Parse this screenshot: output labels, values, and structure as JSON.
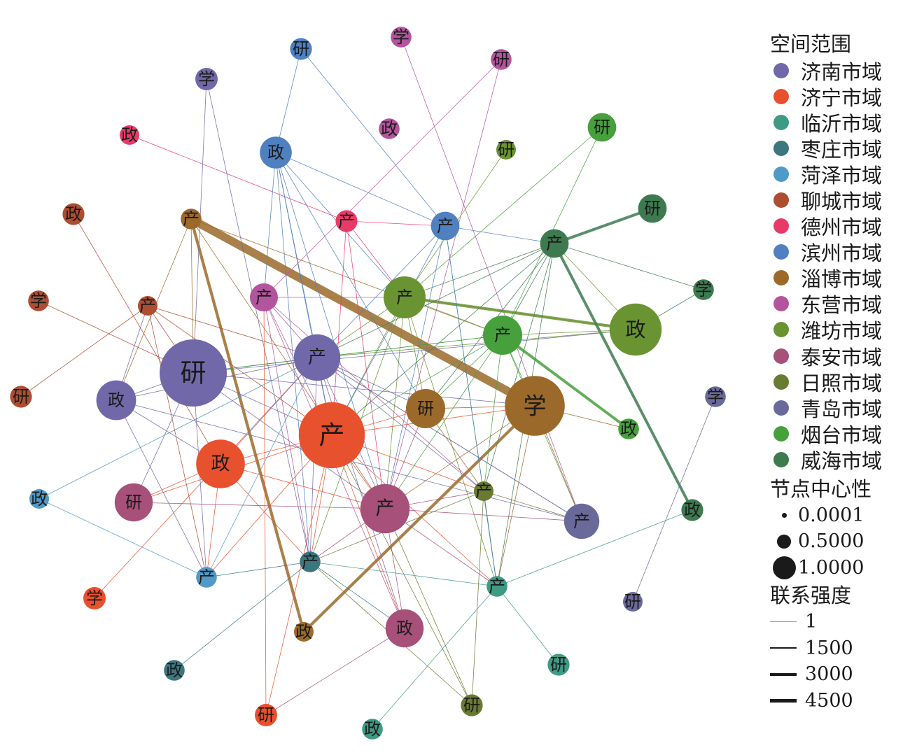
{
  "legend": {
    "region_title": "空间范围",
    "centrality_title": "节点中心性",
    "strength_title": "联系强度",
    "regions": [
      {
        "name": "济南市域",
        "color": "#7068a8"
      },
      {
        "name": "济宁市域",
        "color": "#e8512d"
      },
      {
        "name": "临沂市域",
        "color": "#3f9a84"
      },
      {
        "name": "枣庄市域",
        "color": "#3c7780"
      },
      {
        "name": "菏泽市域",
        "color": "#4f9ac8"
      },
      {
        "name": "聊城市域",
        "color": "#ad4e33"
      },
      {
        "name": "德州市域",
        "color": "#e83a68"
      },
      {
        "name": "滨州市域",
        "color": "#4f80c0"
      },
      {
        "name": "淄博市域",
        "color": "#9b6a2a"
      },
      {
        "name": "东营市域",
        "color": "#b2559d"
      },
      {
        "name": "潍坊市域",
        "color": "#6a9332"
      },
      {
        "name": "泰安市域",
        "color": "#a6507a"
      },
      {
        "name": "日照市域",
        "color": "#697a32"
      },
      {
        "name": "青岛市域",
        "color": "#6a6a9a"
      },
      {
        "name": "烟台市域",
        "color": "#46a03c"
      },
      {
        "name": "威海市域",
        "color": "#3d7a50"
      }
    ],
    "centrality": [
      {
        "label": "0.0001",
        "value": 0.0001
      },
      {
        "label": "0.5000",
        "value": 0.5
      },
      {
        "label": "1.0000",
        "value": 1.0
      }
    ],
    "strength": [
      {
        "label": "1",
        "value": 1
      },
      {
        "label": "1500",
        "value": 1500
      },
      {
        "label": "3000",
        "value": 3000
      },
      {
        "label": "4500",
        "value": 4500
      }
    ]
  },
  "nodes": [
    {
      "id": "jn-yan",
      "label": "研",
      "region": "济南市域",
      "centrality": 0.95
    },
    {
      "id": "jn-chan",
      "label": "产",
      "region": "济南市域",
      "centrality": 0.58
    },
    {
      "id": "jn-zheng",
      "label": "政",
      "region": "济南市域",
      "centrality": 0.46
    },
    {
      "id": "jn-xue",
      "label": "学",
      "region": "济南市域",
      "centrality": 0.15
    },
    {
      "id": "jin-chan",
      "label": "产",
      "region": "济宁市域",
      "centrality": 0.93
    },
    {
      "id": "jin-zheng",
      "label": "政",
      "region": "济宁市域",
      "centrality": 0.62
    },
    {
      "id": "jin-xue",
      "label": "学",
      "region": "济宁市域",
      "centrality": 0.15
    },
    {
      "id": "jin-yan",
      "label": "研",
      "region": "济宁市域",
      "centrality": 0.15
    },
    {
      "id": "ly-chan",
      "label": "产",
      "region": "临沂市域",
      "centrality": 0.12
    },
    {
      "id": "ly-yan",
      "label": "研",
      "region": "临沂市域",
      "centrality": 0.14
    },
    {
      "id": "ly-zheng",
      "label": "政",
      "region": "临沂市域",
      "centrality": 0.12
    },
    {
      "id": "zz-chan",
      "label": "产",
      "region": "枣庄市域",
      "centrality": 0.12
    },
    {
      "id": "zz-zheng",
      "label": "政",
      "region": "枣庄市域",
      "centrality": 0.12
    },
    {
      "id": "hz-zheng",
      "label": "政",
      "region": "菏泽市域",
      "centrality": 0.1
    },
    {
      "id": "hz-chan",
      "label": "产",
      "region": "菏泽市域",
      "centrality": 0.12
    },
    {
      "id": "lc-zheng",
      "label": "政",
      "region": "聊城市域",
      "centrality": 0.14
    },
    {
      "id": "lc-xue",
      "label": "学",
      "region": "聊城市域",
      "centrality": 0.12
    },
    {
      "id": "lc-chan",
      "label": "产",
      "region": "聊城市域",
      "centrality": 0.1
    },
    {
      "id": "lc-yan",
      "label": "研",
      "region": "聊城市域",
      "centrality": 0.14
    },
    {
      "id": "dz-zheng",
      "label": "政",
      "region": "德州市域",
      "centrality": 0.1
    },
    {
      "id": "dz-chan",
      "label": "产",
      "region": "德州市域",
      "centrality": 0.14
    },
    {
      "id": "bz-yan",
      "label": "研",
      "region": "滨州市域",
      "centrality": 0.14
    },
    {
      "id": "bz-zheng",
      "label": "政",
      "region": "滨州市域",
      "centrality": 0.32
    },
    {
      "id": "bz-chan",
      "label": "产",
      "region": "滨州市域",
      "centrality": 0.26
    },
    {
      "id": "zb-chan",
      "label": "产",
      "region": "淄博市域",
      "centrality": 0.12
    },
    {
      "id": "zb-yan",
      "label": "研",
      "region": "淄博市域",
      "centrality": 0.45
    },
    {
      "id": "zb-xue",
      "label": "学",
      "region": "淄博市域",
      "centrality": 0.82
    },
    {
      "id": "zb-zheng",
      "label": "政",
      "region": "淄博市域",
      "centrality": 0.1
    },
    {
      "id": "dy-xue",
      "label": "学",
      "region": "东营市域",
      "centrality": 0.12
    },
    {
      "id": "dy-yan",
      "label": "研",
      "region": "东营市域",
      "centrality": 0.12
    },
    {
      "id": "dy-zheng",
      "label": "政",
      "region": "东营市域",
      "centrality": 0.12
    },
    {
      "id": "dy-chan",
      "label": "产",
      "region": "东营市域",
      "centrality": 0.25
    },
    {
      "id": "wf-yan",
      "label": "研",
      "region": "潍坊市域",
      "centrality": 0.1
    },
    {
      "id": "wf-chan",
      "label": "产",
      "region": "潍坊市域",
      "centrality": 0.5
    },
    {
      "id": "wf-zheng",
      "label": "政",
      "region": "潍坊市域",
      "centrality": 0.68
    },
    {
      "id": "ta-yan",
      "label": "研",
      "region": "泰安市域",
      "centrality": 0.43
    },
    {
      "id": "ta-chan",
      "label": "产",
      "region": "泰安市域",
      "centrality": 0.63
    },
    {
      "id": "ta-zheng",
      "label": "政",
      "region": "泰安市域",
      "centrality": 0.43
    },
    {
      "id": "rz-chan",
      "label": "产",
      "region": "日照市域",
      "centrality": 0.1
    },
    {
      "id": "rz-yan",
      "label": "研",
      "region": "日照市域",
      "centrality": 0.14
    },
    {
      "id": "qd-xue",
      "label": "学",
      "region": "青岛市域",
      "centrality": 0.12
    },
    {
      "id": "qd-chan",
      "label": "产",
      "region": "青岛市域",
      "centrality": 0.38
    },
    {
      "id": "qd-yan",
      "label": "研",
      "region": "青岛市域",
      "centrality": 0.1
    },
    {
      "id": "yt-yan",
      "label": "研",
      "region": "烟台市域",
      "centrality": 0.26
    },
    {
      "id": "yt-chan",
      "label": "产",
      "region": "烟台市域",
      "centrality": 0.45
    },
    {
      "id": "yt-zheng",
      "label": "政",
      "region": "烟台市域",
      "centrality": 0.12
    },
    {
      "id": "wh-yan",
      "label": "研",
      "region": "威海市域",
      "centrality": 0.26
    },
    {
      "id": "wh-chan",
      "label": "产",
      "region": "威海市域",
      "centrality": 0.26
    },
    {
      "id": "wh-xue",
      "label": "学",
      "region": "威海市域",
      "centrality": 0.12
    },
    {
      "id": "wh-zheng",
      "label": "政",
      "region": "威海市域",
      "centrality": 0.14
    }
  ],
  "edges": [
    {
      "from": "zb-chan",
      "to": "zb-xue",
      "strength": 4500
    },
    {
      "from": "zb-chan",
      "to": "zb-zheng",
      "strength": 1400
    },
    {
      "from": "zb-xue",
      "to": "zb-zheng",
      "strength": 1400
    },
    {
      "from": "wf-chan",
      "to": "wf-zheng",
      "strength": 1400
    },
    {
      "from": "wh-chan",
      "to": "wh-yan",
      "strength": 1300
    },
    {
      "from": "wh-chan",
      "to": "wh-zheng",
      "strength": 1300
    },
    {
      "from": "yt-chan",
      "to": "yt-zheng",
      "strength": 1300
    },
    {
      "from": "dz-zheng",
      "to": "dz-chan",
      "strength": 1
    },
    {
      "from": "dy-xue",
      "to": "qd-chan",
      "strength": 1
    },
    {
      "from": "dy-yan",
      "to": "dy-chan",
      "strength": 1
    },
    {
      "from": "dy-yan",
      "to": "ta-chan",
      "strength": 1
    },
    {
      "from": "bz-yan",
      "to": "bz-zheng",
      "strength": 1
    },
    {
      "from": "bz-yan",
      "to": "bz-chan",
      "strength": 1
    },
    {
      "from": "jn-xue",
      "to": "zz-chan",
      "strength": 1
    },
    {
      "from": "lc-zheng",
      "to": "jin-zheng",
      "strength": 1
    },
    {
      "from": "lc-xue",
      "to": "jn-yan",
      "strength": 1
    },
    {
      "from": "lc-yan",
      "to": "lc-chan",
      "strength": 1
    },
    {
      "from": "jin-xue",
      "to": "jn-chan",
      "strength": 1
    },
    {
      "from": "jin-yan",
      "to": "dy-chan",
      "strength": 1
    },
    {
      "from": "hz-zheng",
      "to": "hz-chan",
      "strength": 1
    },
    {
      "from": "hz-zheng",
      "to": "jn-chan",
      "strength": 1
    },
    {
      "from": "zz-zheng",
      "to": "zz-chan",
      "strength": 1
    },
    {
      "from": "ly-zheng",
      "to": "ly-chan",
      "strength": 1
    },
    {
      "from": "ly-yan",
      "to": "ly-chan",
      "strength": 1
    },
    {
      "from": "qd-yan",
      "to": "qd-xue",
      "strength": 1
    },
    {
      "from": "wh-xue",
      "to": "wh-chan",
      "strength": 1
    },
    {
      "from": "wh-xue",
      "to": "wf-zheng",
      "strength": 1
    },
    {
      "from": "wf-yan",
      "to": "wf-chan",
      "strength": 1
    },
    {
      "from": "yt-yan",
      "to": "wf-chan",
      "strength": 1
    },
    {
      "from": "yt-yan",
      "to": "yt-chan",
      "strength": 1
    },
    {
      "from": "bz-zheng",
      "to": "bz-chan",
      "strength": 1
    },
    {
      "from": "bz-zheng",
      "to": "jn-chan",
      "strength": 1
    },
    {
      "from": "bz-zheng",
      "to": "jin-chan",
      "strength": 1
    },
    {
      "from": "bz-zheng",
      "to": "zb-yan",
      "strength": 1
    },
    {
      "from": "bz-zheng",
      "to": "wf-chan",
      "strength": 1
    },
    {
      "from": "bz-zheng",
      "to": "ta-chan",
      "strength": 1
    },
    {
      "from": "bz-zheng",
      "to": "dy-chan",
      "strength": 1
    },
    {
      "from": "bz-chan",
      "to": "jn-chan",
      "strength": 1
    },
    {
      "from": "bz-chan",
      "to": "ta-chan",
      "strength": 1
    },
    {
      "from": "bz-chan",
      "to": "wh-chan",
      "strength": 1
    },
    {
      "from": "dz-chan",
      "to": "bz-chan",
      "strength": 1
    },
    {
      "from": "dz-chan",
      "to": "jin-chan",
      "strength": 1
    },
    {
      "from": "dz-chan",
      "to": "ta-chan",
      "strength": 1
    },
    {
      "from": "dz-chan",
      "to": "wf-chan",
      "strength": 1
    },
    {
      "from": "zb-chan",
      "to": "jn-yan",
      "strength": 1
    },
    {
      "from": "zb-chan",
      "to": "yt-chan",
      "strength": 1
    },
    {
      "from": "zb-chan",
      "to": "ta-chan",
      "strength": 1
    },
    {
      "from": "zb-chan",
      "to": "jn-zheng",
      "strength": 1
    },
    {
      "from": "lc-chan",
      "to": "jn-yan",
      "strength": 1
    },
    {
      "from": "lc-chan",
      "to": "jin-chan",
      "strength": 1
    },
    {
      "from": "lc-chan",
      "to": "jn-chan",
      "strength": 1
    },
    {
      "from": "lc-chan",
      "to": "hz-chan",
      "strength": 1
    },
    {
      "from": "dy-chan",
      "to": "jn-chan",
      "strength": 1
    },
    {
      "from": "dy-chan",
      "to": "jin-chan",
      "strength": 1
    },
    {
      "from": "dy-chan",
      "to": "ta-zheng",
      "strength": 1
    },
    {
      "from": "dy-chan",
      "to": "wf-chan",
      "strength": 1
    },
    {
      "from": "dy-chan",
      "to": "rz-chan",
      "strength": 1
    },
    {
      "from": "wf-chan",
      "to": "jn-chan",
      "strength": 1
    },
    {
      "from": "wf-chan",
      "to": "jin-chan",
      "strength": 1
    },
    {
      "from": "wf-chan",
      "to": "ta-chan",
      "strength": 1
    },
    {
      "from": "wf-chan",
      "to": "zb-yan",
      "strength": 1
    },
    {
      "from": "wf-chan",
      "to": "yt-chan",
      "strength": 1
    },
    {
      "from": "wf-chan",
      "to": "zz-chan",
      "strength": 1
    },
    {
      "from": "wf-chan",
      "to": "ly-chan",
      "strength": 1
    },
    {
      "from": "wh-chan",
      "to": "jn-chan",
      "strength": 1
    },
    {
      "from": "wh-chan",
      "to": "wf-chan",
      "strength": 1
    },
    {
      "from": "wh-chan",
      "to": "yt-chan",
      "strength": 1
    },
    {
      "from": "wh-chan",
      "to": "jin-chan",
      "strength": 1
    },
    {
      "from": "wh-chan",
      "to": "rz-chan",
      "strength": 1
    },
    {
      "from": "wh-chan",
      "to": "ly-chan",
      "strength": 1
    },
    {
      "from": "yt-chan",
      "to": "jn-chan",
      "strength": 1
    },
    {
      "from": "yt-chan",
      "to": "jin-chan",
      "strength": 1
    },
    {
      "from": "yt-chan",
      "to": "ta-chan",
      "strength": 1
    },
    {
      "from": "yt-chan",
      "to": "rz-chan",
      "strength": 1
    },
    {
      "from": "yt-chan",
      "to": "qd-chan",
      "strength": 1
    },
    {
      "from": "yt-chan",
      "to": "zb-xue",
      "strength": 1
    },
    {
      "from": "jn-chan",
      "to": "jn-yan",
      "strength": 1
    },
    {
      "from": "jn-chan",
      "to": "jin-chan",
      "strength": 1
    },
    {
      "from": "jn-chan",
      "to": "jin-zheng",
      "strength": 1
    },
    {
      "from": "jn-chan",
      "to": "ta-chan",
      "strength": 1
    },
    {
      "from": "jn-chan",
      "to": "ta-zheng",
      "strength": 1
    },
    {
      "from": "jn-chan",
      "to": "zb-yan",
      "strength": 1
    },
    {
      "from": "jn-chan",
      "to": "qd-chan",
      "strength": 1
    },
    {
      "from": "jn-chan",
      "to": "zz-chan",
      "strength": 1
    },
    {
      "from": "jn-chan",
      "to": "rz-chan",
      "strength": 1
    },
    {
      "from": "jn-yan",
      "to": "jn-zheng",
      "strength": 1
    },
    {
      "from": "jn-yan",
      "to": "jin-chan",
      "strength": 1
    },
    {
      "from": "jn-yan",
      "to": "ta-chan",
      "strength": 1
    },
    {
      "from": "jn-yan",
      "to": "zb-xue",
      "strength": 1
    },
    {
      "from": "jn-yan",
      "to": "wf-zheng",
      "strength": 1
    },
    {
      "from": "jn-yan",
      "to": "ta-yan",
      "strength": 1
    },
    {
      "from": "jn-yan",
      "to": "hz-chan",
      "strength": 1
    },
    {
      "from": "jn-zheng",
      "to": "jin-zheng",
      "strength": 1
    },
    {
      "from": "jn-zheng",
      "to": "qd-chan",
      "strength": 1
    },
    {
      "from": "jn-zheng",
      "to": "lc-chan",
      "strength": 1
    },
    {
      "from": "jin-chan",
      "to": "jin-zheng",
      "strength": 1
    },
    {
      "from": "jin-chan",
      "to": "ta-chan",
      "strength": 1
    },
    {
      "from": "jin-chan",
      "to": "zb-yan",
      "strength": 1
    },
    {
      "from": "jin-chan",
      "to": "ta-zheng",
      "strength": 1
    },
    {
      "from": "jin-chan",
      "to": "zz-chan",
      "strength": 1
    },
    {
      "from": "jin-chan",
      "to": "ly-chan",
      "strength": 1
    },
    {
      "from": "jin-chan",
      "to": "rz-chan",
      "strength": 1
    },
    {
      "from": "jin-chan",
      "to": "ta-yan",
      "strength": 1
    },
    {
      "from": "jin-chan",
      "to": "hz-chan",
      "strength": 1
    },
    {
      "from": "jin-chan",
      "to": "zb-xue",
      "strength": 1
    },
    {
      "from": "jin-chan",
      "to": "jin-yan",
      "strength": 1
    },
    {
      "from": "jin-zheng",
      "to": "ta-yan",
      "strength": 1
    },
    {
      "from": "jin-zheng",
      "to": "hz-chan",
      "strength": 1
    },
    {
      "from": "jin-zheng",
      "to": "zz-chan",
      "strength": 1
    },
    {
      "from": "jin-zheng",
      "to": "ta-chan",
      "strength": 1
    },
    {
      "from": "ta-chan",
      "to": "ta-zheng",
      "strength": 1
    },
    {
      "from": "ta-chan",
      "to": "ta-yan",
      "strength": 1
    },
    {
      "from": "ta-chan",
      "to": "zz-chan",
      "strength": 1
    },
    {
      "from": "ta-chan",
      "to": "ly-chan",
      "strength": 1
    },
    {
      "from": "ta-chan",
      "to": "rz-chan",
      "strength": 1
    },
    {
      "from": "ta-chan",
      "to": "qd-chan",
      "strength": 1
    },
    {
      "from": "ta-chan",
      "to": "zb-yan",
      "strength": 1
    },
    {
      "from": "zb-yan",
      "to": "zb-xue",
      "strength": 1
    },
    {
      "from": "zb-yan",
      "to": "rz-chan",
      "strength": 1
    },
    {
      "from": "zb-xue",
      "to": "yt-zheng",
      "strength": 1
    },
    {
      "from": "zb-xue",
      "to": "qd-chan",
      "strength": 1
    },
    {
      "from": "zb-xue",
      "to": "ly-chan",
      "strength": 1
    },
    {
      "from": "zb-xue",
      "to": "ta-chan",
      "strength": 1
    },
    {
      "from": "wf-zheng",
      "to": "yt-chan",
      "strength": 1
    },
    {
      "from": "wf-zheng",
      "to": "jn-chan",
      "strength": 1
    },
    {
      "from": "wf-zheng",
      "to": "wf-chan",
      "strength": 1
    },
    {
      "from": "wf-zheng",
      "to": "wh-chan",
      "strength": 1
    },
    {
      "from": "rz-chan",
      "to": "ly-chan",
      "strength": 1
    },
    {
      "from": "rz-chan",
      "to": "rz-yan",
      "strength": 1
    },
    {
      "from": "rz-chan",
      "to": "qd-chan",
      "strength": 1
    },
    {
      "from": "rz-chan",
      "to": "zz-chan",
      "strength": 1
    },
    {
      "from": "rz-yan",
      "to": "jin-chan",
      "strength": 1
    },
    {
      "from": "rz-yan",
      "to": "zz-chan",
      "strength": 1
    },
    {
      "from": "rz-yan",
      "to": "ta-chan",
      "strength": 1
    },
    {
      "from": "ly-chan",
      "to": "zz-chan",
      "strength": 1
    },
    {
      "from": "ly-chan",
      "to": "wh-zheng",
      "strength": 1
    },
    {
      "from": "ly-chan",
      "to": "bz-chan",
      "strength": 1
    },
    {
      "from": "zz-chan",
      "to": "hz-chan",
      "strength": 1
    },
    {
      "from": "zz-chan",
      "to": "ta-zheng",
      "strength": 1
    },
    {
      "from": "ta-zheng",
      "to": "jin-yan",
      "strength": 1
    },
    {
      "from": "hz-chan",
      "to": "jn-chan",
      "strength": 1
    },
    {
      "from": "qd-chan",
      "to": "jn-chan",
      "strength": 1
    },
    {
      "from": "jn-xue",
      "to": "jn-yan",
      "strength": 1
    },
    {
      "from": "jn-zheng",
      "to": "jn-chan",
      "strength": 1
    },
    {
      "from": "jn-zheng",
      "to": "hz-chan",
      "strength": 1
    },
    {
      "from": "yt-chan",
      "to": "jn-yan",
      "strength": 1
    },
    {
      "from": "yt-chan",
      "to": "zb-yan",
      "strength": 1
    },
    {
      "from": "dy-chan",
      "to": "zz-chan",
      "strength": 1
    },
    {
      "from": "bz-zheng",
      "to": "zz-chan",
      "strength": 1
    },
    {
      "from": "bz-chan",
      "to": "jin-chan",
      "strength": 1
    },
    {
      "from": "bz-chan",
      "to": "ly-chan",
      "strength": 1
    },
    {
      "from": "wh-chan",
      "to": "zb-yan",
      "strength": 1
    }
  ]
}
